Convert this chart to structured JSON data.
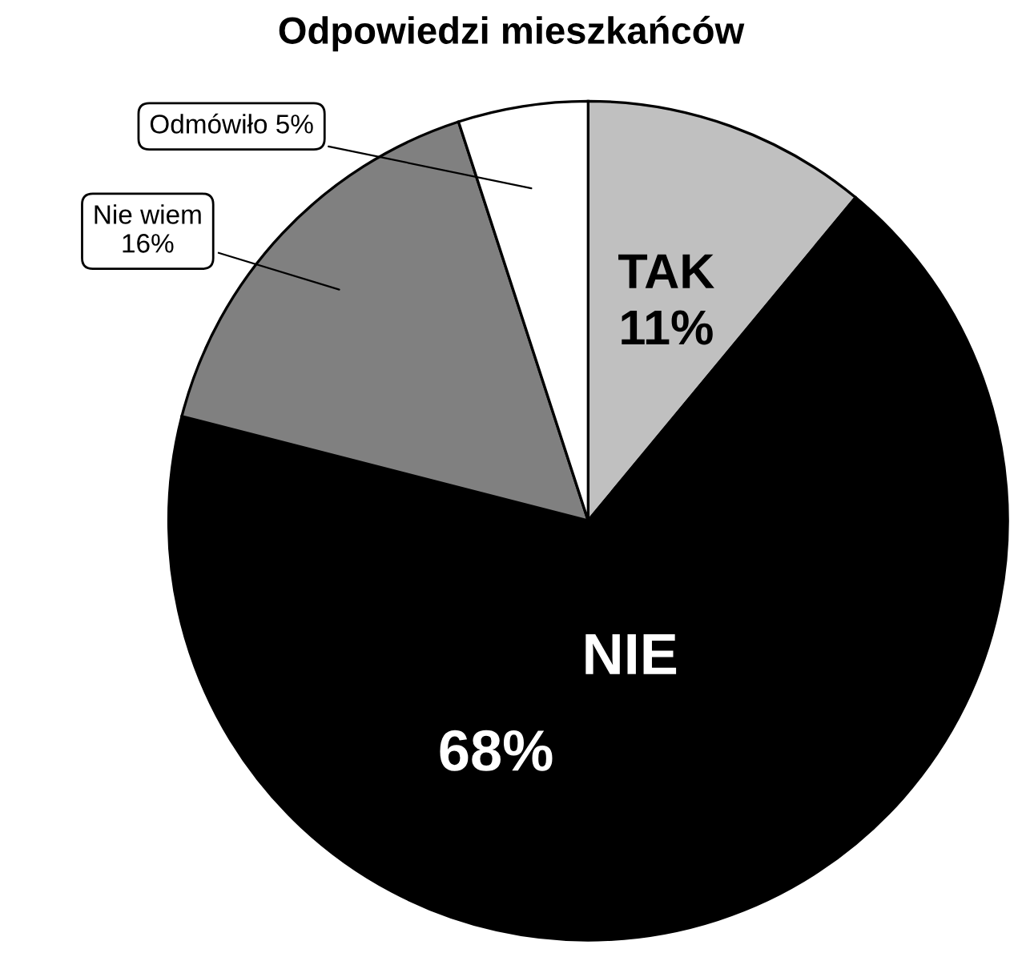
{
  "chart_data": {
    "type": "pie",
    "title": "Odpowiedzi mieszkańców",
    "categories": [
      "TAK",
      "NIE",
      "Nie wiem",
      "Odmówiło"
    ],
    "values": [
      11,
      68,
      16,
      5
    ],
    "value_labels": [
      "11%",
      "68%",
      "16%",
      "5%"
    ],
    "colors": [
      "#c0c0c0",
      "#000000",
      "#808080",
      "#ffffff"
    ]
  }
}
